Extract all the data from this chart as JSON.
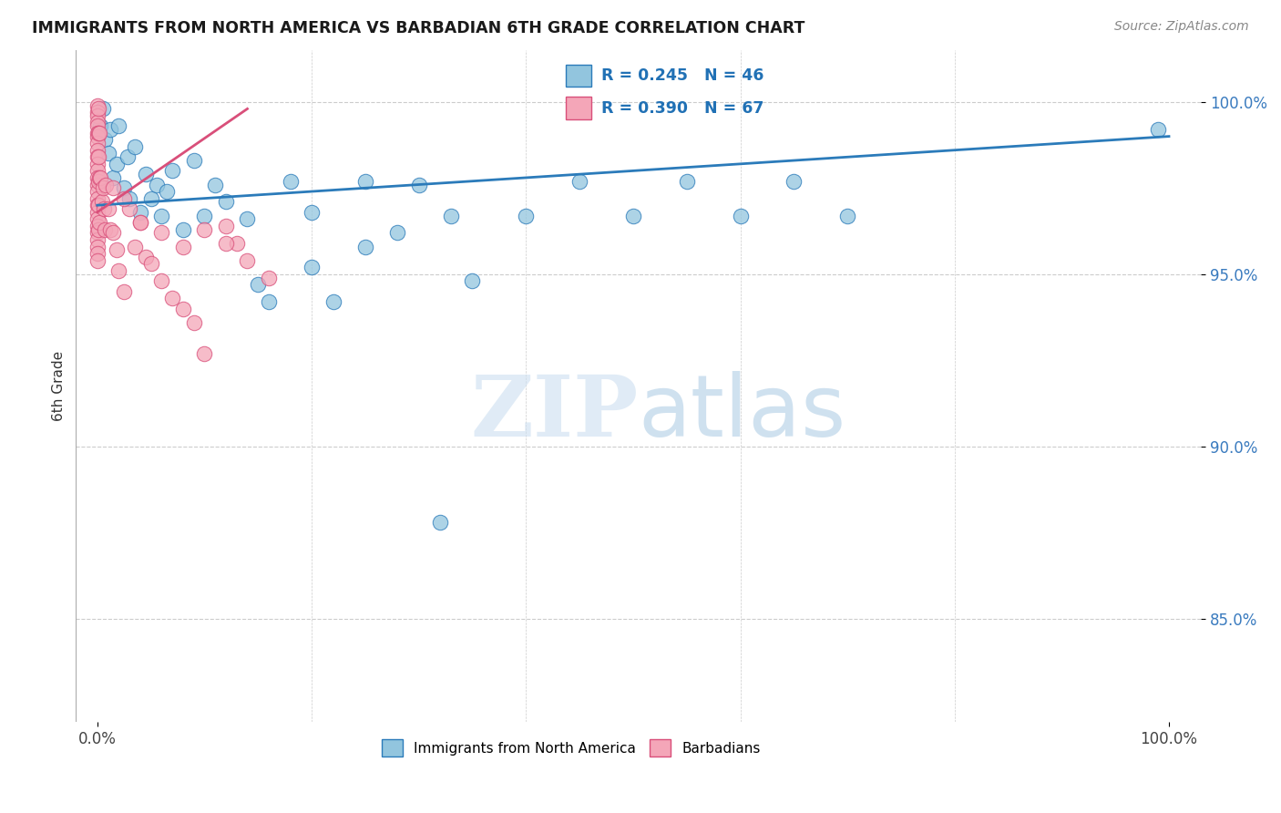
{
  "title": "IMMIGRANTS FROM NORTH AMERICA VS BARBADIAN 6TH GRADE CORRELATION CHART",
  "source": "Source: ZipAtlas.com",
  "ylabel": "6th Grade",
  "y_ticks": [
    0.85,
    0.9,
    0.95,
    1.0
  ],
  "y_tick_labels": [
    "85.0%",
    "90.0%",
    "95.0%",
    "100.0%"
  ],
  "x_ticks": [
    0.0,
    1.0
  ],
  "x_tick_labels": [
    "0.0%",
    "100.0%"
  ],
  "xlim": [
    -0.02,
    1.03
  ],
  "ylim": [
    0.82,
    1.015
  ],
  "blue_color": "#92c5de",
  "pink_color": "#f4a6b8",
  "trendline_blue": "#2b7bba",
  "trendline_pink": "#d94f7a",
  "legend_R_blue": "0.245",
  "legend_N_blue": "46",
  "legend_R_pink": "0.390",
  "legend_N_pink": "67",
  "grid_color": "#cccccc",
  "blue_scatter_x": [
    0.003,
    0.005,
    0.007,
    0.01,
    0.012,
    0.015,
    0.018,
    0.02,
    0.025,
    0.028,
    0.03,
    0.035,
    0.04,
    0.045,
    0.05,
    0.055,
    0.06,
    0.065,
    0.07,
    0.08,
    0.09,
    0.1,
    0.11,
    0.12,
    0.14,
    0.16,
    0.18,
    0.2,
    0.22,
    0.25,
    0.28,
    0.3,
    0.33,
    0.35,
    0.4,
    0.45,
    0.5,
    0.55,
    0.6,
    0.65,
    0.7,
    0.15,
    0.2,
    0.25,
    0.32,
    0.99
  ],
  "blue_scatter_y": [
    0.993,
    0.998,
    0.989,
    0.985,
    0.992,
    0.978,
    0.982,
    0.993,
    0.975,
    0.984,
    0.972,
    0.987,
    0.968,
    0.979,
    0.972,
    0.976,
    0.967,
    0.974,
    0.98,
    0.963,
    0.983,
    0.967,
    0.976,
    0.971,
    0.966,
    0.942,
    0.977,
    0.952,
    0.942,
    0.977,
    0.962,
    0.976,
    0.967,
    0.948,
    0.967,
    0.977,
    0.967,
    0.977,
    0.967,
    0.977,
    0.967,
    0.947,
    0.968,
    0.958,
    0.878,
    0.992
  ],
  "pink_scatter_x": [
    0.0,
    0.0,
    0.0,
    0.0,
    0.0,
    0.0,
    0.0,
    0.0,
    0.0,
    0.0,
    0.0,
    0.0,
    0.0,
    0.0,
    0.0,
    0.0,
    0.0,
    0.0,
    0.0,
    0.0,
    0.0,
    0.0,
    0.0,
    0.0,
    0.0,
    0.001,
    0.001,
    0.001,
    0.001,
    0.001,
    0.001,
    0.002,
    0.002,
    0.002,
    0.003,
    0.004,
    0.005,
    0.006,
    0.007,
    0.008,
    0.01,
    0.012,
    0.015,
    0.018,
    0.02,
    0.025,
    0.03,
    0.035,
    0.04,
    0.045,
    0.05,
    0.06,
    0.07,
    0.08,
    0.09,
    0.1,
    0.12,
    0.13,
    0.015,
    0.025,
    0.04,
    0.06,
    0.08,
    0.1,
    0.12,
    0.14,
    0.16
  ],
  "pink_scatter_y": [
    0.999,
    0.997,
    0.996,
    0.994,
    0.993,
    0.991,
    0.99,
    0.988,
    0.986,
    0.984,
    0.982,
    0.98,
    0.978,
    0.976,
    0.974,
    0.972,
    0.97,
    0.968,
    0.966,
    0.964,
    0.962,
    0.96,
    0.958,
    0.956,
    0.954,
    0.998,
    0.991,
    0.984,
    0.977,
    0.97,
    0.963,
    0.991,
    0.978,
    0.965,
    0.978,
    0.971,
    0.975,
    0.969,
    0.963,
    0.976,
    0.969,
    0.963,
    0.962,
    0.957,
    0.951,
    0.945,
    0.969,
    0.958,
    0.965,
    0.955,
    0.953,
    0.948,
    0.943,
    0.94,
    0.936,
    0.927,
    0.964,
    0.959,
    0.975,
    0.972,
    0.965,
    0.962,
    0.958,
    0.963,
    0.959,
    0.954,
    0.949
  ],
  "trendline_blue_x0": 0.0,
  "trendline_blue_y0": 0.97,
  "trendline_blue_x1": 1.0,
  "trendline_blue_y1": 0.99,
  "trendline_pink_x0": 0.0,
  "trendline_pink_y0": 0.968,
  "trendline_pink_x1": 0.14,
  "trendline_pink_y1": 0.998
}
